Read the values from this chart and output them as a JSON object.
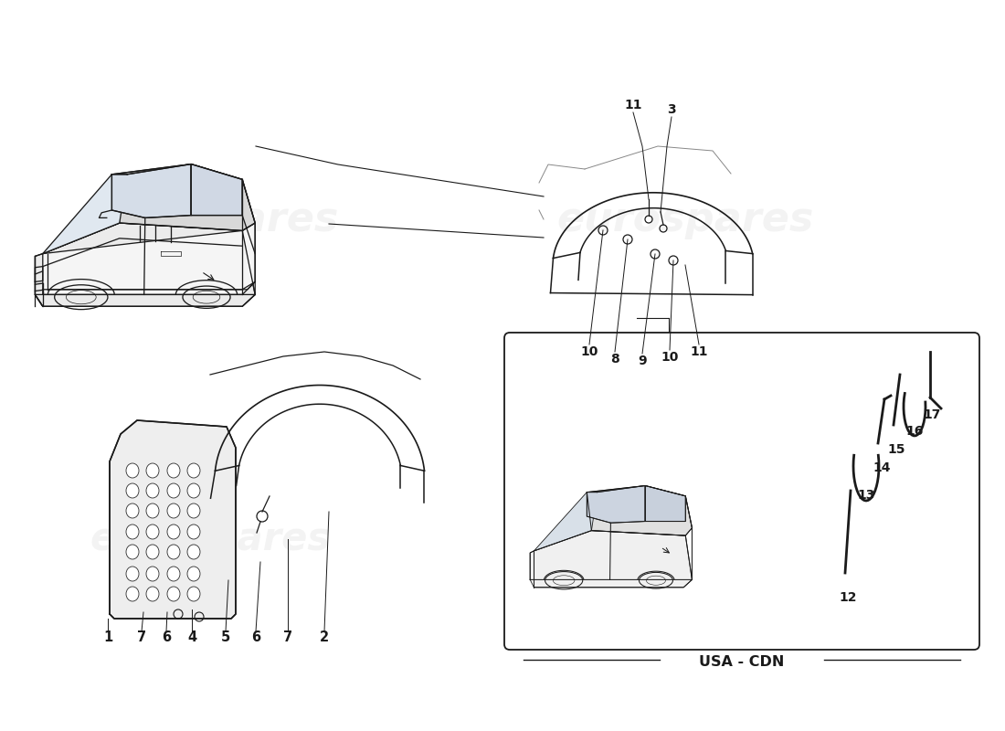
{
  "bg_color": "#ffffff",
  "wm_color": "#cccccc",
  "wm_text": "eurospares",
  "wm_alpha": 0.22,
  "lc": "#1a1a1a",
  "lc_light": "#888888",
  "lw_main": 1.1,
  "lw_thin": 0.7,
  "label_fs": 10,
  "usa_cdn": "USA - CDN",
  "parts_bl": [
    "1",
    "7",
    "6",
    "4",
    "5",
    "6",
    "7",
    "2"
  ],
  "parts_tr": [
    "11",
    "3",
    "10",
    "8",
    "9",
    "10",
    "11"
  ],
  "parts_usa": [
    "12",
    "13",
    "14",
    "15",
    "16",
    "17"
  ]
}
